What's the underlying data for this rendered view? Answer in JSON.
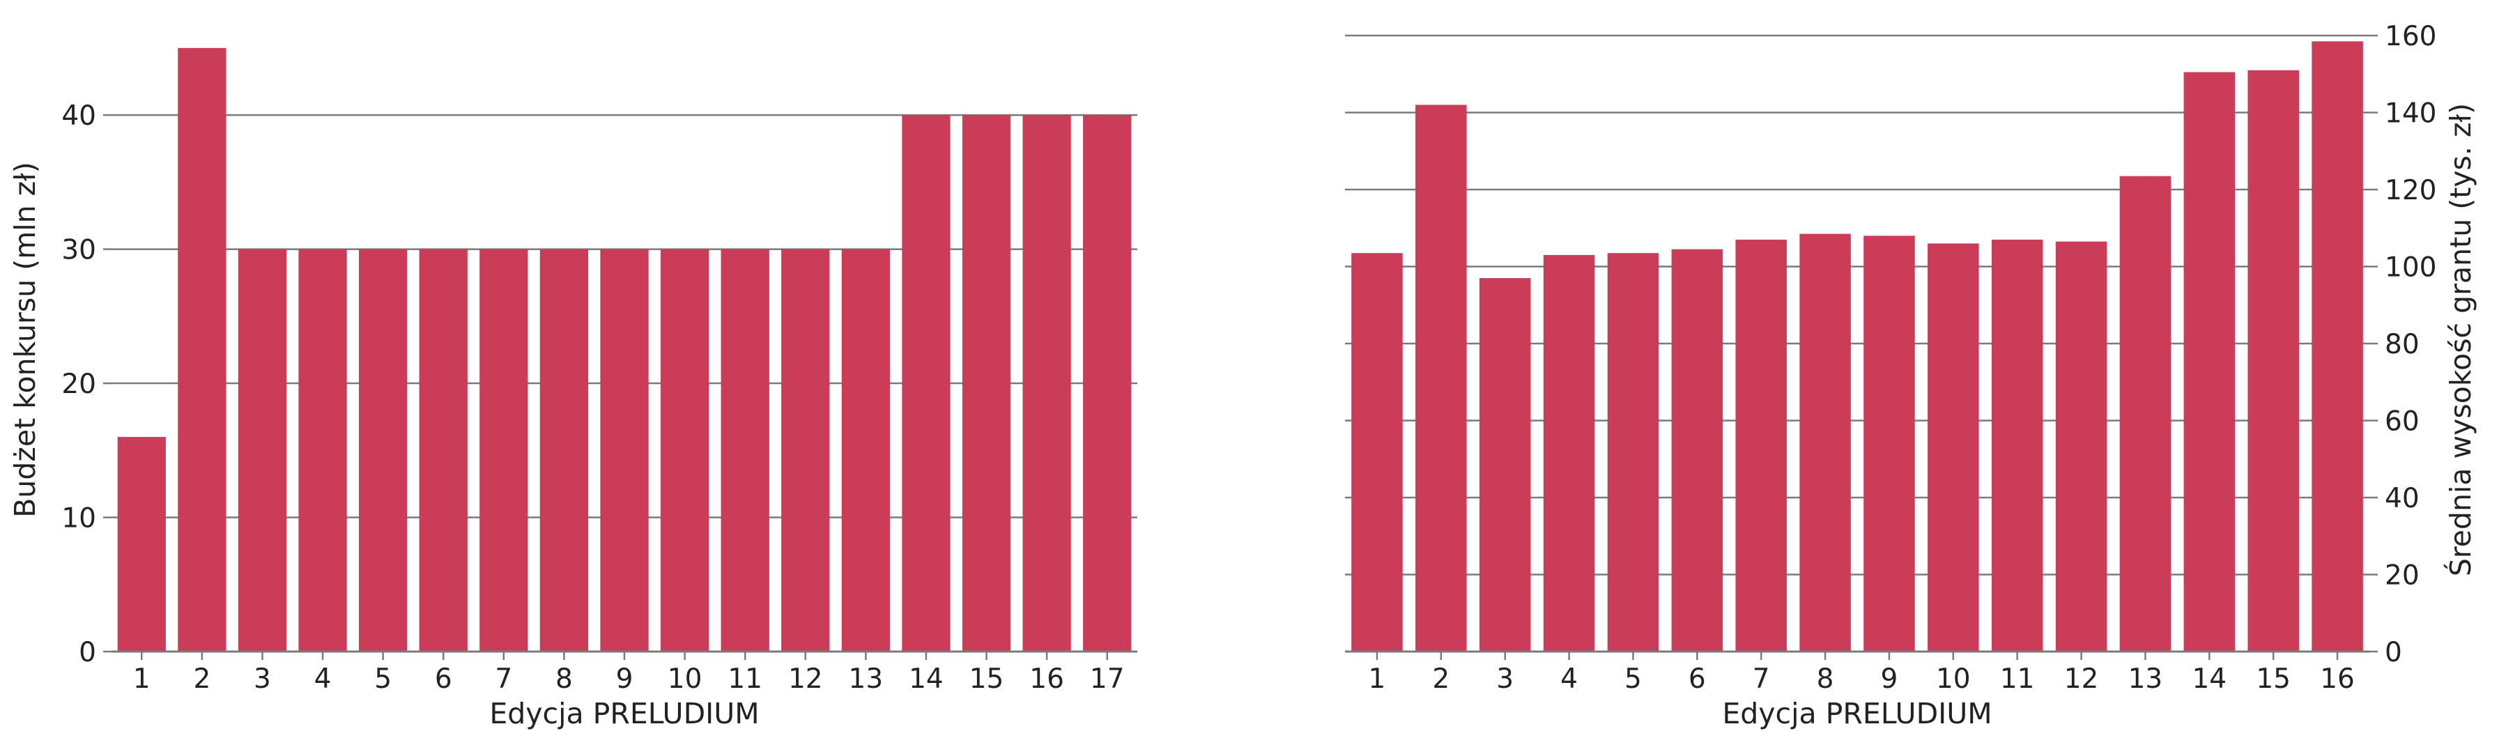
{
  "chart_data": [
    {
      "type": "bar",
      "xlabel": "Edycja PRELUDIUM",
      "ylabel": "Budżet konkursu (mln zł)",
      "categories": [
        "1",
        "2",
        "3",
        "4",
        "5",
        "6",
        "7",
        "8",
        "9",
        "10",
        "11",
        "12",
        "13",
        "14",
        "15",
        "16",
        "17"
      ],
      "values": [
        16,
        45,
        30,
        30,
        30,
        30,
        30,
        30,
        30,
        30,
        30,
        30,
        30,
        40,
        40,
        40,
        40
      ],
      "ylim": [
        0,
        46.5
      ],
      "yticks": [
        "0",
        "10",
        "20",
        "30",
        "40"
      ],
      "ytick_values": [
        0,
        10,
        20,
        30,
        40
      ],
      "grid": true,
      "y_axis_side": "left",
      "color": "#cb3c58"
    },
    {
      "type": "bar",
      "xlabel": "Edycja PRELUDIUM",
      "ylabel": "Średnia wysokość grantu (tys. zł)",
      "categories": [
        "1",
        "2",
        "3",
        "4",
        "5",
        "6",
        "7",
        "8",
        "9",
        "10",
        "11",
        "12",
        "13",
        "14",
        "15",
        "16"
      ],
      "values": [
        103.5,
        142,
        97,
        103,
        103.5,
        104.5,
        107,
        108.5,
        108,
        106,
        107,
        106.5,
        123.5,
        150.5,
        151,
        158.5
      ],
      "ylim": [
        0,
        162
      ],
      "yticks": [
        "0",
        "20",
        "40",
        "60",
        "80",
        "100",
        "120",
        "140",
        "160"
      ],
      "ytick_values": [
        0,
        20,
        40,
        60,
        80,
        100,
        120,
        140,
        160
      ],
      "grid": true,
      "y_axis_side": "right",
      "color": "#cb3c58"
    }
  ]
}
